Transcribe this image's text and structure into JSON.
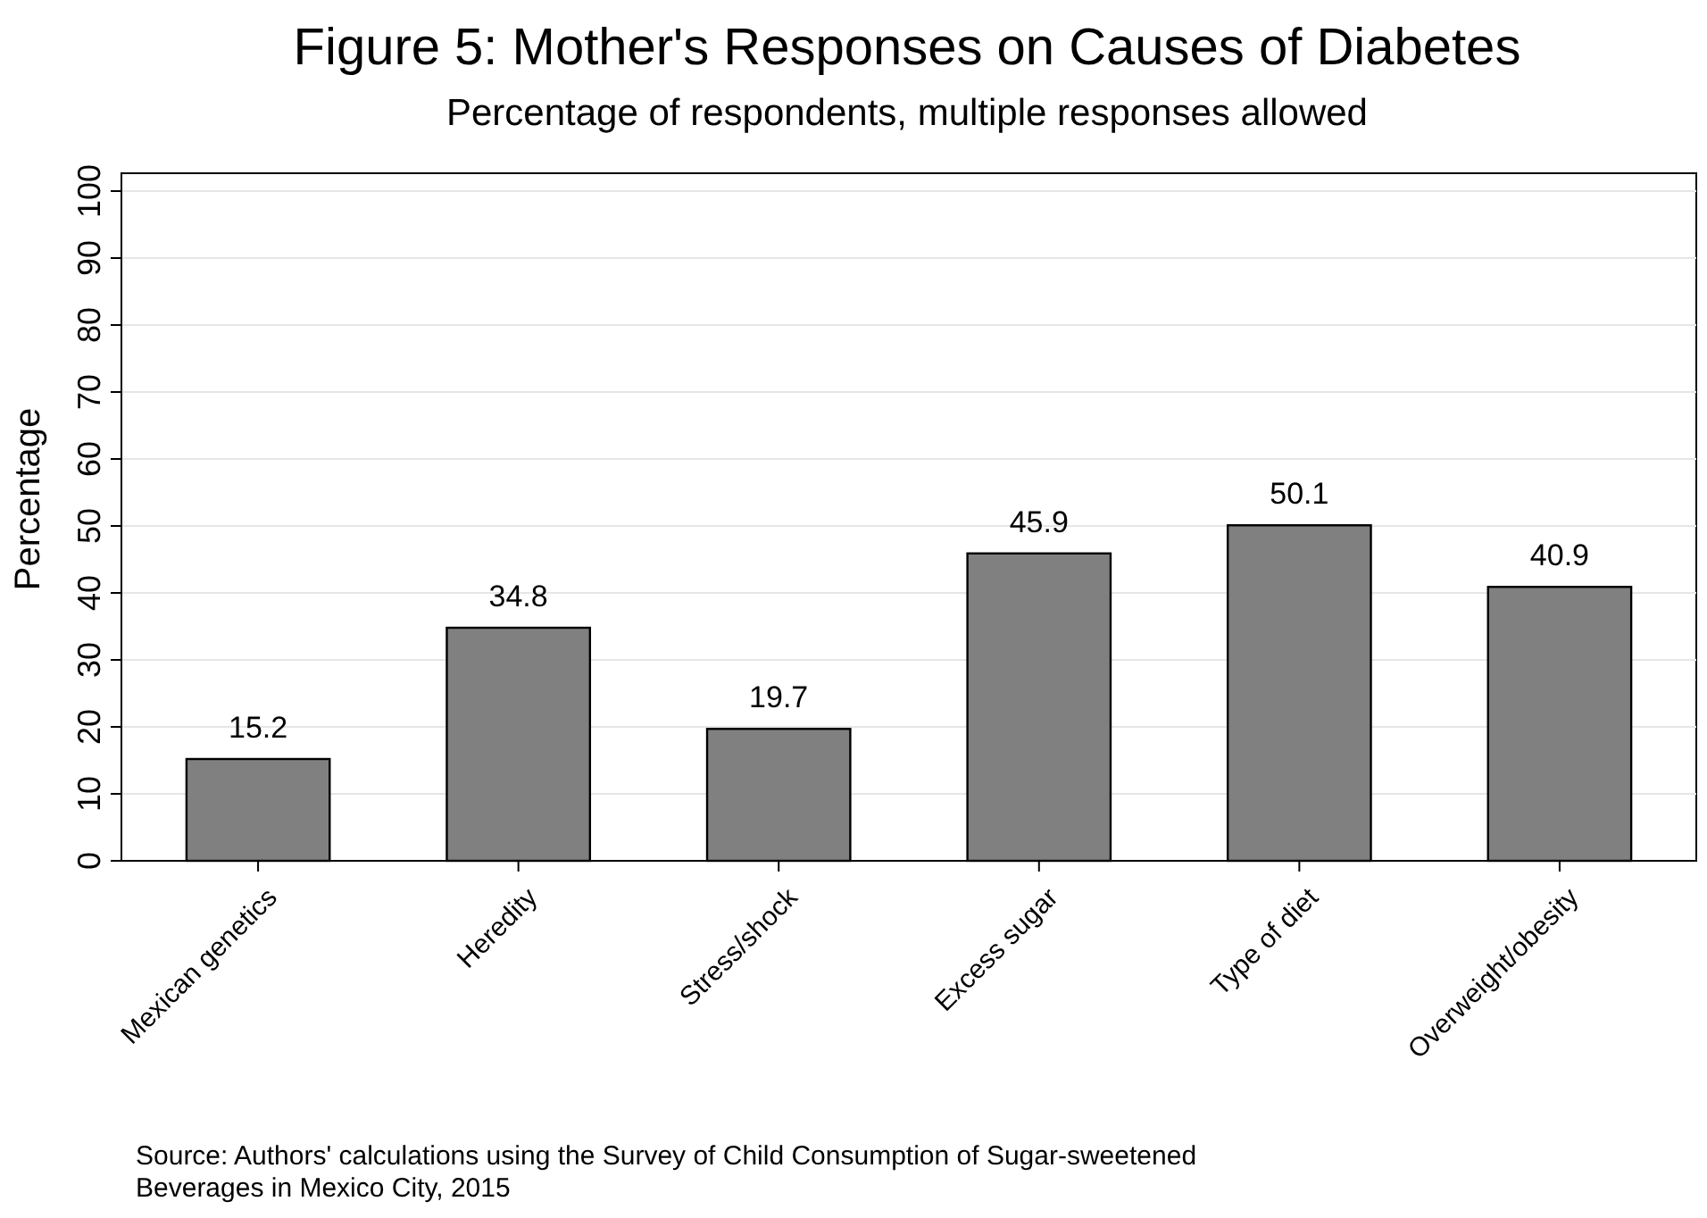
{
  "chart_data": {
    "type": "bar",
    "title": "Figure 5: Mother's Responses on Causes of Diabetes",
    "subtitle": "Percentage of respondents, multiple responses allowed",
    "ylabel": "Percentage",
    "categories": [
      "Mexican genetics",
      "Heredity",
      "Stress/shock",
      "Excess sugar",
      "Type of diet",
      "Overweight/obesity"
    ],
    "values": [
      15.2,
      34.8,
      19.7,
      45.9,
      50.1,
      40.9
    ],
    "color": "#808080",
    "ylim": [
      0,
      100
    ],
    "yticks": [
      0,
      10,
      20,
      30,
      40,
      50,
      60,
      70,
      80,
      90,
      100
    ],
    "grid": "y",
    "data_labels": true,
    "annotations": [
      "Source: Authors' calculations using the Survey of Child Consumption of Sugar-sweetened Beverages in Mexico City, 2015"
    ]
  }
}
